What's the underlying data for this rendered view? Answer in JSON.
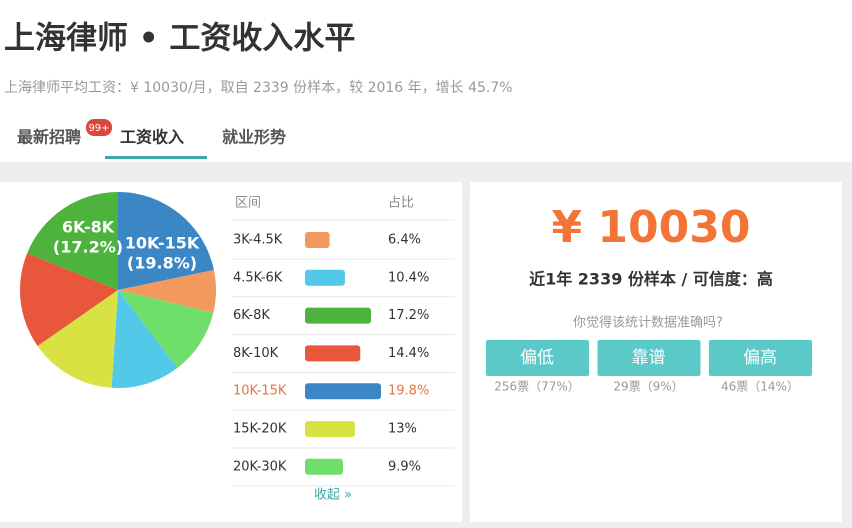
{
  "header": {
    "title": "上海律师 • 工资收入水平",
    "subtitle": "上海律师平均工资：¥ 10030/月，取自 2339 份样本，较 2016 年，增长 45.7%"
  },
  "tabs": [
    {
      "label": "最新招聘",
      "badge": "99+"
    },
    {
      "label": "工资收入"
    },
    {
      "label": "就业形势"
    }
  ],
  "active_tab": 1,
  "chart_data": {
    "type": "pie",
    "columns": [
      "区间",
      "占比"
    ],
    "categories": [
      "3K-4.5K",
      "4.5K-6K",
      "6K-8K",
      "8K-10K",
      "10K-15K",
      "15K-20K",
      "20K-30K"
    ],
    "values": [
      6.4,
      10.4,
      17.2,
      14.4,
      19.8,
      13,
      9.9
    ],
    "value_labels": [
      "6.4%",
      "10.4%",
      "17.2%",
      "14.4%",
      "19.8%",
      "13%",
      "9.9%"
    ],
    "colors": [
      "#f29a5e",
      "#52c9e8",
      "#4db33d",
      "#e8573c",
      "#3b87c6",
      "#d9e243",
      "#6fdf6b"
    ],
    "slice_labels": [
      null,
      null,
      [
        "6K-8K",
        "(17.2%)"
      ],
      null,
      [
        "10K-15K",
        "(19.8%)"
      ],
      null,
      null
    ],
    "highlight": 4,
    "collapse": "收起 »"
  },
  "stats": {
    "salary": "¥ 10030",
    "summary": "近1年 2339 份样本 / 可信度：高",
    "question": "你觉得该统计数据准确吗?",
    "options": [
      {
        "label": "偏低",
        "votes": "256票（77%）"
      },
      {
        "label": "靠谱",
        "votes": "29票（9%）"
      },
      {
        "label": "偏高",
        "votes": "46票（14%）"
      }
    ]
  }
}
